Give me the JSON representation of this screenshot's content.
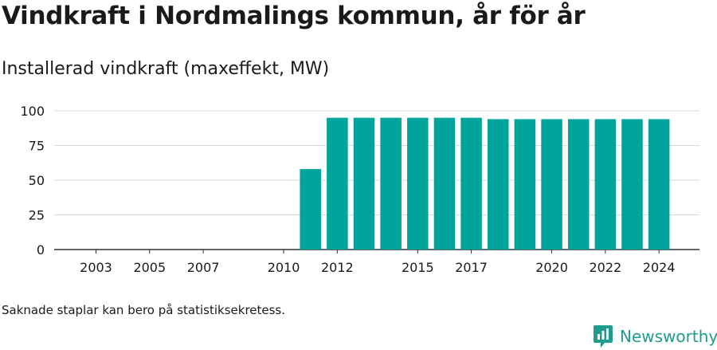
{
  "page": {
    "title": "Vindkraft i Nordmalings kommun, år för år",
    "subtitle": "Installerad vindkraft (maxeffekt, MW)",
    "note": "Saknade staplar kan bero på statistiksekretess.",
    "brand": "Newsworthy",
    "brand_icon": "newsworthy-chart-bubble-icon"
  },
  "colors": {
    "bar": "#00a49a",
    "grid": "#d9d9d9",
    "axis": "#333333",
    "brand": "#1f9c8f"
  },
  "chart_data": {
    "type": "bar",
    "title": "Vindkraft i Nordmalings kommun, år för år",
    "subtitle": "Installerad vindkraft (maxeffekt, MW)",
    "xlabel": "",
    "ylabel": "",
    "categories": [
      "2003",
      "2004",
      "2005",
      "2006",
      "2007",
      "2008",
      "2009",
      "2010",
      "2011",
      "2012",
      "2013",
      "2014",
      "2015",
      "2016",
      "2017",
      "2018",
      "2019",
      "2020",
      "2021",
      "2022",
      "2023",
      "2024"
    ],
    "values": [
      0,
      0,
      0,
      0,
      0,
      0,
      0,
      0,
      58,
      95,
      95,
      95,
      95,
      95,
      95,
      94,
      94,
      94,
      94,
      94,
      94,
      94
    ],
    "x_tick_labels": [
      "2003",
      "2005",
      "2007",
      "2010",
      "2012",
      "2015",
      "2017",
      "2020",
      "2022",
      "2024"
    ],
    "y_ticks": [
      0,
      25,
      50,
      75,
      100
    ],
    "ylim": [
      0,
      100
    ],
    "grid": true,
    "legend": "none"
  }
}
